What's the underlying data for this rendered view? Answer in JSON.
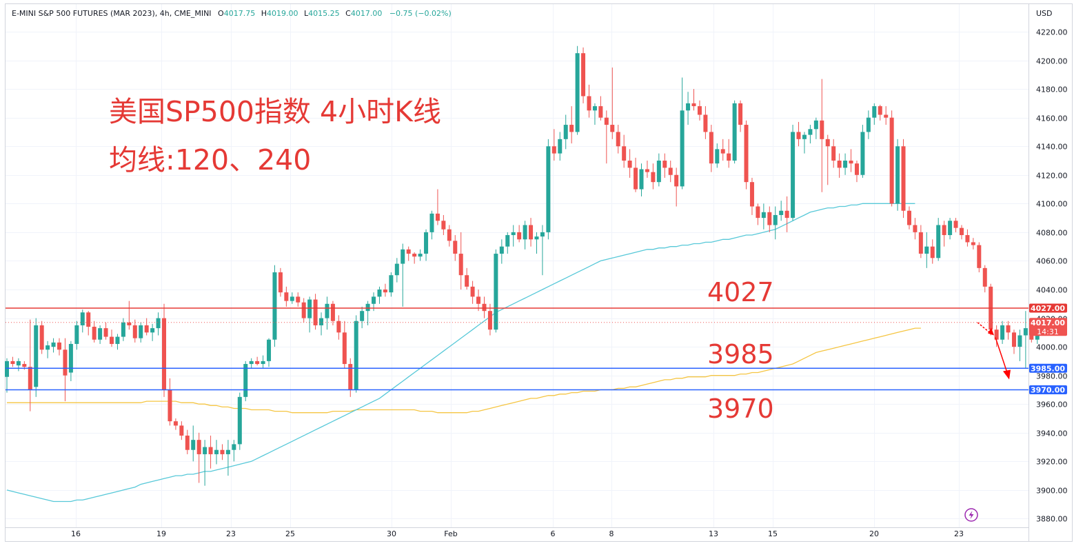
{
  "header": {
    "symbol": "E-MINI S&P 500 FUTURES (MAR 2023), 4h, CME_MINI",
    "open_label": "O",
    "open": "4017.75",
    "high_label": "H",
    "high": "4019.00",
    "low_label": "L",
    "low": "4015.25",
    "close_label": "C",
    "close": "4017.00",
    "change": "−0.75 (−0.02%)"
  },
  "currency": "USD",
  "annotations": {
    "title_line1": "美国SP500指数 4小时K线",
    "title_line2": "均线:120、240",
    "level_4027": "4027",
    "level_3985": "3985",
    "level_3970": "3970"
  },
  "price_tags": {
    "res": "4027.00",
    "last": "4017.00",
    "countdown": "14:31",
    "sup1": "3985.00",
    "sup2": "3970.00"
  },
  "colors": {
    "up": "#26a69a",
    "down": "#ef5350",
    "ma120": "#56c8d8",
    "ma240": "#f5c542",
    "resistance": "#e53935",
    "support": "#2962ff",
    "annotation": "#e53935",
    "arrow": "#ff0000"
  },
  "chart_data": {
    "type": "candlestick",
    "title": "美国SP500指数 4小时K线",
    "ylim": [
      3870,
      4232
    ],
    "y_ticks": [
      3880,
      3900,
      3920,
      3940,
      3960,
      3980,
      4000,
      4020,
      4040,
      4060,
      4080,
      4100,
      4120,
      4140,
      4160,
      4180,
      4200,
      4220
    ],
    "x_ticks": [
      "16",
      "19",
      "23",
      "25",
      "30",
      "Feb",
      "6",
      "8",
      "13",
      "15",
      "20",
      "23"
    ],
    "horizontal_levels": [
      4027,
      3985,
      3970
    ],
    "last_price": 4017,
    "candles_ohlc": [
      [
        3979,
        3992,
        3968,
        3990
      ],
      [
        3990,
        3993,
        3986,
        3988
      ],
      [
        3987,
        3992,
        3983,
        3990
      ],
      [
        3988,
        3990,
        3984,
        3986
      ],
      [
        3986,
        4019,
        3955,
        3970
      ],
      [
        3972,
        4020,
        3965,
        4015
      ],
      [
        4015,
        4018,
        3995,
        3998
      ],
      [
        3998,
        4004,
        3992,
        4001
      ],
      [
        4000,
        4006,
        3996,
        4003
      ],
      [
        4003,
        4006,
        3994,
        3998
      ],
      [
        3998,
        4006,
        3962,
        3980
      ],
      [
        3982,
        4004,
        3976,
        4002
      ],
      [
        4002,
        4018,
        3998,
        4015
      ],
      [
        4015,
        4026,
        4010,
        4024
      ],
      [
        4024,
        4025,
        4008,
        4014
      ],
      [
        4014,
        4018,
        4003,
        4005
      ],
      [
        4005,
        4015,
        4002,
        4013
      ],
      [
        4013,
        4017,
        4005,
        4007
      ],
      [
        4007,
        4012,
        4000,
        4002
      ],
      [
        4002,
        4009,
        3998,
        4007
      ],
      [
        4007,
        4020,
        4004,
        4017
      ],
      [
        4017,
        4032,
        4012,
        4015
      ],
      [
        4015,
        4019,
        4003,
        4006
      ],
      [
        4006,
        4017,
        4003,
        4015
      ],
      [
        4015,
        4020,
        4008,
        4010
      ],
      [
        4010,
        4016,
        4004,
        4013
      ],
      [
        4013,
        4024,
        4008,
        4020
      ],
      [
        4020,
        4030,
        3965,
        3970
      ],
      [
        3970,
        3978,
        3945,
        3948
      ],
      [
        3948,
        3950,
        3942,
        3945
      ],
      [
        3945,
        3948,
        3935,
        3938
      ],
      [
        3938,
        3942,
        3925,
        3928
      ],
      [
        3928,
        3945,
        3920,
        3935
      ],
      [
        3935,
        3940,
        3905,
        3925
      ],
      [
        3925,
        3935,
        3903,
        3930
      ],
      [
        3930,
        3938,
        3915,
        3925
      ],
      [
        3925,
        3935,
        3918,
        3928
      ],
      [
        3928,
        3932,
        3921,
        3925
      ],
      [
        3925,
        3935,
        3910,
        3928
      ],
      [
        3928,
        3935,
        3920,
        3932
      ],
      [
        3932,
        3968,
        3928,
        3965
      ],
      [
        3965,
        3990,
        3962,
        3988
      ],
      [
        3988,
        3992,
        3985,
        3990
      ],
      [
        3990,
        3993,
        3987,
        3988
      ],
      [
        3988,
        3994,
        3985,
        3990
      ],
      [
        3990,
        4006,
        3986,
        4005
      ],
      [
        4005,
        4057,
        4000,
        4052
      ],
      [
        4052,
        4055,
        4035,
        4038
      ],
      [
        4038,
        4042,
        4028,
        4032
      ],
      [
        4032,
        4038,
        4030,
        4035
      ],
      [
        4035,
        4038,
        4028,
        4031
      ],
      [
        4031,
        4034,
        4017,
        4020
      ],
      [
        4020,
        4035,
        4010,
        4033
      ],
      [
        4033,
        4037,
        4012,
        4015
      ],
      [
        4015,
        4024,
        4008,
        4020
      ],
      [
        4020,
        4035,
        4012,
        4030
      ],
      [
        4030,
        4032,
        4015,
        4018
      ],
      [
        4018,
        4022,
        4005,
        4010
      ],
      [
        4010,
        4018,
        3985,
        3988
      ],
      [
        3988,
        3992,
        3965,
        3970
      ],
      [
        3970,
        4022,
        3968,
        4018
      ],
      [
        4018,
        4028,
        4013,
        4025
      ],
      [
        4025,
        4032,
        4015,
        4030
      ],
      [
        4030,
        4038,
        4025,
        4035
      ],
      [
        4035,
        4042,
        4030,
        4040
      ],
      [
        4040,
        4044,
        4035,
        4038
      ],
      [
        4038,
        4052,
        4035,
        4050
      ],
      [
        4050,
        4062,
        4045,
        4058
      ],
      [
        4058,
        4072,
        4028,
        4068
      ],
      [
        4068,
        4070,
        4060,
        4065
      ],
      [
        4065,
        4066,
        4058,
        4063
      ],
      [
        4063,
        4068,
        4060,
        4065
      ],
      [
        4065,
        4082,
        4060,
        4080
      ],
      [
        4080,
        4095,
        4075,
        4093
      ],
      [
        4093,
        4110,
        4085,
        4088
      ],
      [
        4088,
        4092,
        4078,
        4082
      ],
      [
        4082,
        4085,
        4070,
        4074
      ],
      [
        4074,
        4078,
        4060,
        4065
      ],
      [
        4065,
        4080,
        4040,
        4050
      ],
      [
        4050,
        4055,
        4040,
        4042
      ],
      [
        4042,
        4046,
        4030,
        4035
      ],
      [
        4035,
        4040,
        4025,
        4030
      ],
      [
        4030,
        4035,
        4020,
        4025
      ],
      [
        4025,
        4030,
        4008,
        4012
      ],
      [
        4012,
        4068,
        4010,
        4065
      ],
      [
        4065,
        4075,
        4058,
        4070
      ],
      [
        4070,
        4080,
        4065,
        4078
      ],
      [
        4078,
        4085,
        4070,
        4080
      ],
      [
        4080,
        4085,
        4073,
        4075
      ],
      [
        4075,
        4088,
        4068,
        4085
      ],
      [
        4085,
        4090,
        4070,
        4075
      ],
      [
        4075,
        4080,
        4065,
        4077
      ],
      [
        4077,
        4085,
        4050,
        4080
      ],
      [
        4080,
        4145,
        4075,
        4140
      ],
      [
        4140,
        4152,
        4130,
        4135
      ],
      [
        4135,
        4150,
        4130,
        4145
      ],
      [
        4145,
        4162,
        4138,
        4155
      ],
      [
        4155,
        4168,
        4142,
        4150
      ],
      [
        4150,
        4210,
        4148,
        4205
      ],
      [
        4205,
        4209,
        4170,
        4175
      ],
      [
        4175,
        4183,
        4160,
        4165
      ],
      [
        4165,
        4170,
        4155,
        4168
      ],
      [
        4168,
        4175,
        4158,
        4160
      ],
      [
        4160,
        4165,
        4128,
        4155
      ],
      [
        4155,
        4195,
        4145,
        4150
      ],
      [
        4150,
        4155,
        4135,
        4140
      ],
      [
        4140,
        4148,
        4125,
        4130
      ],
      [
        4130,
        4138,
        4118,
        4125
      ],
      [
        4125,
        4132,
        4108,
        4110
      ],
      [
        4110,
        4128,
        4105,
        4124
      ],
      [
        4124,
        4130,
        4118,
        4122
      ],
      [
        4122,
        4128,
        4110,
        4115
      ],
      [
        4115,
        4135,
        4112,
        4130
      ],
      [
        4130,
        4135,
        4118,
        4125
      ],
      [
        4125,
        4130,
        4115,
        4120
      ],
      [
        4120,
        4125,
        4098,
        4112
      ],
      [
        4112,
        4188,
        4110,
        4165
      ],
      [
        4165,
        4178,
        4155,
        4170
      ],
      [
        4170,
        4180,
        4165,
        4168
      ],
      [
        4168,
        4172,
        4158,
        4162
      ],
      [
        4162,
        4168,
        4145,
        4150
      ],
      [
        4150,
        4155,
        4122,
        4128
      ],
      [
        4128,
        4142,
        4125,
        4138
      ],
      [
        4138,
        4145,
        4130,
        4135
      ],
      [
        4135,
        4145,
        4125,
        4130
      ],
      [
        4130,
        4172,
        4128,
        4170
      ],
      [
        4170,
        4172,
        4150,
        4155
      ],
      [
        4155,
        4158,
        4110,
        4115
      ],
      [
        4115,
        4118,
        4092,
        4098
      ],
      [
        4098,
        4100,
        4085,
        4090
      ],
      [
        4090,
        4100,
        4082,
        4094
      ],
      [
        4094,
        4098,
        4080,
        4085
      ],
      [
        4085,
        4098,
        4075,
        4092
      ],
      [
        4092,
        4102,
        4088,
        4095
      ],
      [
        4095,
        4105,
        4080,
        4090
      ],
      [
        4090,
        4155,
        4088,
        4150
      ],
      [
        4150,
        4157,
        4140,
        4145
      ],
      [
        4145,
        4150,
        4135,
        4148
      ],
      [
        4148,
        4155,
        4142,
        4152
      ],
      [
        4152,
        4160,
        4145,
        4158
      ],
      [
        4158,
        4187,
        4108,
        4145
      ],
      [
        4145,
        4148,
        4113,
        4140
      ],
      [
        4140,
        4145,
        4125,
        4130
      ],
      [
        4130,
        4135,
        4118,
        4125
      ],
      [
        4125,
        4135,
        4120,
        4130
      ],
      [
        4130,
        4138,
        4122,
        4128
      ],
      [
        4128,
        4130,
        4115,
        4120
      ],
      [
        4120,
        4155,
        4118,
        4150
      ],
      [
        4150,
        4165,
        4145,
        4160
      ],
      [
        4160,
        4170,
        4155,
        4168
      ],
      [
        4168,
        4169,
        4158,
        4162
      ],
      [
        4162,
        4168,
        4155,
        4160
      ],
      [
        4160,
        4165,
        4098,
        4100
      ],
      [
        4100,
        4145,
        4095,
        4140
      ],
      [
        4140,
        4145,
        4090,
        4095
      ],
      [
        4095,
        4098,
        4082,
        4085
      ],
      [
        4085,
        4090,
        4075,
        4080
      ],
      [
        4080,
        4085,
        4062,
        4065
      ],
      [
        4065,
        4080,
        4055,
        4070
      ],
      [
        4070,
        4075,
        4058,
        4062
      ],
      [
        4062,
        4090,
        4060,
        4085
      ],
      [
        4085,
        4088,
        4070,
        4078
      ],
      [
        4078,
        4090,
        4075,
        4088
      ],
      [
        4088,
        4090,
        4080,
        4083
      ],
      [
        4083,
        4085,
        4075,
        4078
      ],
      [
        4078,
        4082,
        4070,
        4073
      ],
      [
        4073,
        4076,
        4068,
        4071
      ],
      [
        4071,
        4073,
        4052,
        4055
      ],
      [
        4055,
        4057,
        4038,
        4042
      ],
      [
        4042,
        4044,
        4008,
        4012
      ],
      [
        4012,
        4015,
        4000,
        4005
      ],
      [
        4005,
        4018,
        4002,
        4015
      ],
      [
        4015,
        4018,
        4005,
        4010
      ],
      [
        4010,
        4012,
        3995,
        4000
      ],
      [
        4000,
        4012,
        3990,
        4008
      ],
      [
        4008,
        4025,
        3985,
        4013
      ],
      [
        4013,
        4017,
        4003,
        4005
      ],
      [
        4005,
        4019,
        4002,
        4017
      ],
      [
        4017,
        4019,
        4015,
        4017
      ]
    ],
    "ma120": [
      3900,
      3899,
      3898,
      3897,
      3896,
      3895,
      3894,
      3893,
      3892,
      3892,
      3892,
      3892,
      3893,
      3893,
      3894,
      3895,
      3896,
      3897,
      3898,
      3899,
      3900,
      3901,
      3902,
      3904,
      3905,
      3906,
      3907,
      3908,
      3909,
      3910,
      3910,
      3911,
      3911,
      3912,
      3913,
      3913,
      3914,
      3915,
      3916,
      3917,
      3918,
      3919,
      3920,
      3922,
      3924,
      3926,
      3928,
      3930,
      3932,
      3934,
      3936,
      3938,
      3940,
      3942,
      3944,
      3946,
      3948,
      3950,
      3952,
      3954,
      3956,
      3958,
      3960,
      3962,
      3964,
      3967,
      3970,
      3973,
      3976,
      3979,
      3982,
      3985,
      3988,
      3991,
      3994,
      3997,
      4000,
      4003,
      4006,
      4009,
      4012,
      4015,
      4018,
      4021,
      4024,
      4026,
      4028,
      4030,
      4032,
      4034,
      4036,
      4038,
      4040,
      4042,
      4044,
      4046,
      4048,
      4050,
      4052,
      4054,
      4056,
      4058,
      4060,
      4061,
      4062,
      4063,
      4064,
      4065,
      4066,
      4067,
      4068,
      4068,
      4069,
      4069,
      4070,
      4070,
      4071,
      4071,
      4072,
      4072,
      4073,
      4073,
      4074,
      4075,
      4075,
      4076,
      4077,
      4078,
      4078,
      4079,
      4080,
      4081,
      4082,
      4084,
      4086,
      4088,
      4090,
      4092,
      4094,
      4095,
      4096,
      4097,
      4097,
      4098,
      4098,
      4099,
      4099,
      4100,
      4100,
      4100,
      4100,
      4100,
      4100,
      4100,
      4100,
      4100,
      4100
    ],
    "ma240": [
      3961,
      3961,
      3961,
      3961,
      3961,
      3961,
      3961,
      3961,
      3961,
      3961,
      3961,
      3961,
      3961,
      3961,
      3961,
      3961,
      3961,
      3961,
      3961,
      3961,
      3961,
      3961,
      3961,
      3961,
      3962,
      3962,
      3962,
      3962,
      3962,
      3962,
      3961,
      3961,
      3961,
      3960,
      3960,
      3959,
      3959,
      3958,
      3958,
      3957,
      3957,
      3957,
      3956,
      3956,
      3956,
      3956,
      3955,
      3955,
      3955,
      3954,
      3954,
      3954,
      3954,
      3954,
      3954,
      3954,
      3955,
      3955,
      3955,
      3955,
      3956,
      3956,
      3956,
      3956,
      3956,
      3956,
      3956,
      3956,
      3956,
      3956,
      3956,
      3955,
      3955,
      3955,
      3954,
      3954,
      3954,
      3954,
      3954,
      3954,
      3955,
      3955,
      3956,
      3957,
      3958,
      3959,
      3960,
      3961,
      3962,
      3963,
      3964,
      3964,
      3965,
      3966,
      3966,
      3967,
      3967,
      3968,
      3968,
      3969,
      3969,
      3969,
      3970,
      3970,
      3970,
      3971,
      3971,
      3972,
      3972,
      3973,
      3974,
      3975,
      3976,
      3977,
      3977,
      3978,
      3978,
      3979,
      3979,
      3979,
      3979,
      3980,
      3980,
      3980,
      3980,
      3980,
      3981,
      3981,
      3982,
      3982,
      3983,
      3984,
      3985,
      3986,
      3987,
      3988,
      3990,
      3992,
      3994,
      3996,
      3997,
      3998,
      3999,
      4000,
      4001,
      4002,
      4003,
      4004,
      4005,
      4006,
      4007,
      4008,
      4009,
      4010,
      4011,
      4012,
      4013,
      4013
    ],
    "projection_arrow": [
      4017,
      4008,
      3982
    ]
  }
}
